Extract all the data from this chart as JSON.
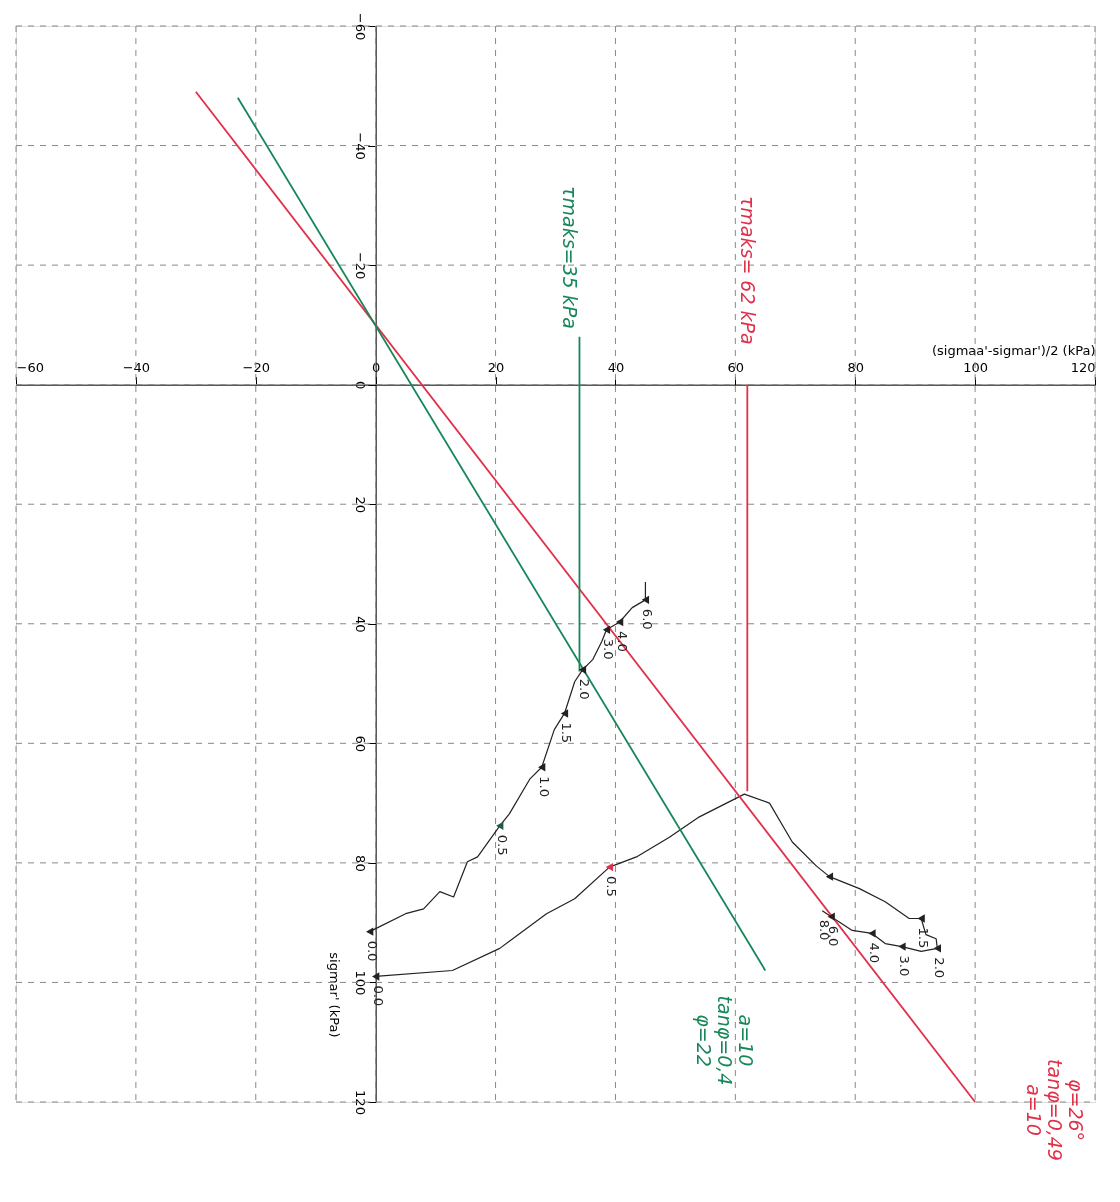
{
  "chart_data": {
    "type": "line",
    "xlabel": "(sigmaa'-sigmar')/2 (kPa)",
    "ylabel": "sigmar' (kPa)",
    "xlim": [
      -60,
      120
    ],
    "ylim": [
      120,
      -60
    ],
    "xticks": [
      -60,
      -40,
      -20,
      0,
      20,
      40,
      60,
      80,
      100,
      120
    ],
    "yticks": [
      -60,
      -40,
      -20,
      0,
      20,
      40,
      60,
      80,
      100,
      120
    ],
    "grid": true,
    "line_style": "solid",
    "series": [
      {
        "color": "#222222",
        "x": [
          -1,
          0,
          5,
          8,
          10.7,
          13,
          15.3,
          17,
          20.7,
          22.3,
          25.7,
          27.7,
          29.8,
          31.5,
          33.2,
          34.5,
          36.2,
          37.7,
          38.5,
          40.7,
          42.8,
          45,
          45
        ],
        "values": [
          91.5,
          91,
          88.5,
          87.7,
          84.8,
          85.7,
          79.8,
          79,
          73.8,
          71.8,
          66,
          64,
          57.7,
          55,
          49.7,
          47.7,
          46,
          43,
          41,
          39.7,
          37.3,
          36,
          33
        ]
      },
      {
        "color": "#222222",
        "x": [
          0,
          12.8,
          20.7,
          28.5,
          33.2,
          39,
          43.5,
          49,
          54,
          61.5,
          65.7,
          69.5,
          73.5,
          75.7,
          80.7,
          85,
          89,
          91,
          91.8,
          93.5,
          93.7,
          91,
          87.8,
          85,
          82.8,
          79.5,
          76,
          74.5
        ],
        "values": [
          99,
          98,
          94.3,
          88.5,
          86,
          80.7,
          79,
          75.7,
          72.3,
          68.5,
          70,
          76.5,
          80.5,
          82.3,
          84.3,
          86.5,
          89.3,
          89.3,
          92,
          92.7,
          94.3,
          94.8,
          94,
          93.5,
          91.8,
          91.3,
          89,
          88
        ]
      },
      {
        "name": "φ=26° tanφ=0,49 a=10",
        "color": "#e0304a",
        "x": [
          -30,
          100
        ],
        "values": [
          -49,
          120
        ]
      },
      {
        "name": "a=10 tanφ=0,4 φ=22",
        "color": "#17875a",
        "x": [
          -23,
          65
        ],
        "values": [
          -48,
          98
        ]
      },
      {
        "name": "τmaks=35 kPa",
        "color": "#17875a",
        "x": [
          34,
          34
        ],
        "values": [
          -8,
          48
        ]
      },
      {
        "name": "τmaks= 62 kPa",
        "color": "#e0304a",
        "x": [
          62,
          62
        ],
        "values": [
          0,
          68
        ]
      },
      {
        "type": "scatter",
        "marker": "triangle",
        "x": [
          -1,
          20.7,
          27.7,
          31.5,
          34.5,
          38.5,
          40.7,
          45,
          0,
          39,
          75.7,
          91,
          93.7,
          87.8,
          82.8,
          76
        ],
        "values": [
          91.5,
          73.8,
          64,
          55,
          47.7,
          41,
          39.7,
          36,
          99,
          80.7,
          82.3,
          89.3,
          94.3,
          94,
          91.8,
          89
        ],
        "colors": [
          "#222222",
          "#1f5a45",
          "#222222",
          "#222222",
          "#222222",
          "#222222",
          "#222222",
          "#222222",
          "#222222",
          "#e0304a",
          "#222222",
          "#222222",
          "#222222",
          "#222222",
          "#222222",
          "#222222"
        ]
      }
    ],
    "annotations": [
      {
        "text": "0.0",
        "x": -1,
        "y": 91.5
      },
      {
        "text": "0.5",
        "x": 20.7,
        "y": 73.8
      },
      {
        "text": "1.0",
        "x": 27.7,
        "y": 64
      },
      {
        "text": "1.5",
        "x": 31.5,
        "y": 55
      },
      {
        "text": "2.0",
        "x": 34.5,
        "y": 47.7
      },
      {
        "text": "3.0",
        "x": 38.5,
        "y": 41
      },
      {
        "text": "4.0",
        "x": 40.7,
        "y": 39.7
      },
      {
        "text": "6.0",
        "x": 45,
        "y": 36
      },
      {
        "text": "0.0",
        "x": 0,
        "y": 99
      },
      {
        "text": "0.5",
        "x": 39,
        "y": 80.7
      },
      {
        "text": "1.5",
        "x": 91,
        "y": 89.3
      },
      {
        "text": "2.0",
        "x": 93.7,
        "y": 94.3
      },
      {
        "text": "3.0",
        "x": 87.8,
        "y": 94
      },
      {
        "text": "4.0",
        "x": 82.8,
        "y": 91.8
      },
      {
        "text": "6.0",
        "x": 76,
        "y": 89
      },
      {
        "text": "8.0",
        "x": 74.5,
        "y": 88
      }
    ]
  }
}
